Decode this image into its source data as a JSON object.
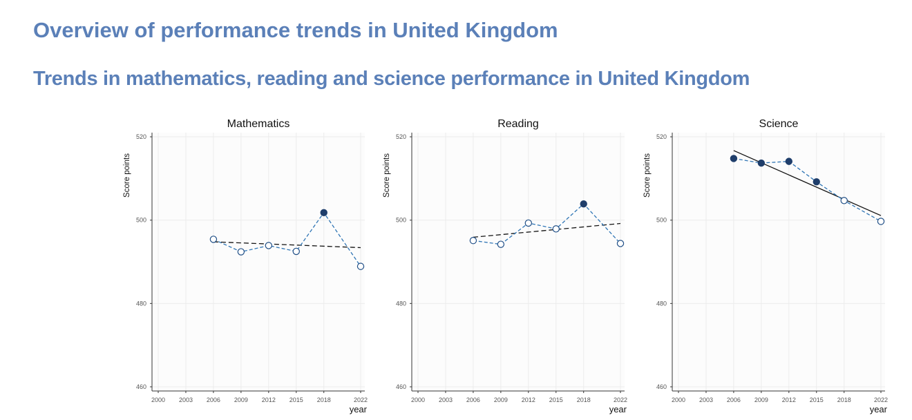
{
  "header": {
    "title": "Overview of performance trends in United Kingdom",
    "subtitle": "Trends in mathematics, reading and science performance in United Kingdom"
  },
  "colors": {
    "title": "#5b80b8",
    "series_line": "#2f75b5",
    "marker": "#1f3e6b",
    "trend": "#111111",
    "panel_background": "#fcfcfc",
    "grid": "#ececec"
  },
  "chart_data": [
    {
      "type": "line",
      "title": "Mathematics",
      "xlabel": "year",
      "ylabel": "Score points",
      "xticks": [
        2000,
        2003,
        2006,
        2009,
        2012,
        2015,
        2018,
        2022
      ],
      "yticks": [
        460,
        480,
        500,
        520
      ],
      "xlim": [
        2000,
        2022
      ],
      "ylim": [
        459,
        521
      ],
      "grid": true,
      "series": [
        {
          "x": [
            2006,
            2009,
            2012,
            2015,
            2018,
            2022
          ],
          "values": [
            495.4,
            492.4,
            493.9,
            492.5,
            501.8,
            488.9
          ],
          "significant": [
            false,
            false,
            false,
            false,
            true,
            false
          ]
        }
      ],
      "trend": {
        "style": "dashed",
        "x": [
          2006,
          2022
        ],
        "y": [
          494.8,
          493.4
        ]
      }
    },
    {
      "type": "line",
      "title": "Reading",
      "xlabel": "year",
      "ylabel": "Score points",
      "xticks": [
        2000,
        2003,
        2006,
        2009,
        2012,
        2015,
        2018,
        2022
      ],
      "yticks": [
        460,
        480,
        500,
        520
      ],
      "xlim": [
        2000,
        2022
      ],
      "ylim": [
        459,
        521
      ],
      "grid": true,
      "series": [
        {
          "x": [
            2006,
            2009,
            2012,
            2015,
            2018,
            2022
          ],
          "values": [
            495.1,
            494.2,
            499.3,
            497.9,
            503.9,
            494.4
          ],
          "significant": [
            false,
            false,
            false,
            false,
            true,
            false
          ]
        }
      ],
      "trend": {
        "style": "dashed",
        "x": [
          2006,
          2022
        ],
        "y": [
          495.9,
          499.2
        ]
      }
    },
    {
      "type": "line",
      "title": "Science",
      "xlabel": "year",
      "ylabel": "Score points",
      "xticks": [
        2000,
        2003,
        2006,
        2009,
        2012,
        2015,
        2018,
        2022
      ],
      "yticks": [
        460,
        480,
        500,
        520
      ],
      "xlim": [
        2000,
        2022
      ],
      "ylim": [
        459,
        521
      ],
      "grid": true,
      "series": [
        {
          "x": [
            2006,
            2009,
            2012,
            2015,
            2018,
            2022
          ],
          "values": [
            514.8,
            513.7,
            514.1,
            509.2,
            504.7,
            499.7
          ],
          "significant": [
            true,
            true,
            true,
            true,
            false,
            false
          ]
        }
      ],
      "trend": {
        "style": "solid",
        "x": [
          2006,
          2022
        ],
        "y": [
          516.7,
          501.1
        ]
      }
    }
  ]
}
